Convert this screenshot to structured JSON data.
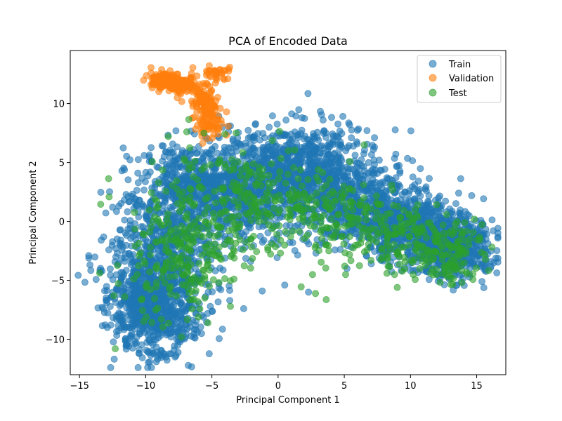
{
  "chart_data": {
    "type": "scatter",
    "title": "PCA of Encoded Data",
    "xlabel": "Principal Component 1",
    "ylabel": "Principal Component 2",
    "xlim": [
      -15.7,
      17.2
    ],
    "ylim": [
      -13.0,
      14.5
    ],
    "xticks": [
      -15,
      -10,
      -5,
      0,
      5,
      10,
      15
    ],
    "yticks": [
      -10,
      -5,
      0,
      5,
      10
    ],
    "grid": false,
    "legend_position": "top-right",
    "marker_alpha": 0.6,
    "series": [
      {
        "name": "Train",
        "color": "#1f77b4",
        "clusters": [
          {
            "cx": -9.5,
            "cy": -7.5,
            "sx": 1.6,
            "sy": 2.0,
            "n": 700
          },
          {
            "cx": -8.5,
            "cy": -2.5,
            "sx": 2.0,
            "sy": 2.6,
            "n": 500
          },
          {
            "cx": -6.0,
            "cy": 3.0,
            "sx": 2.4,
            "sy": 2.0,
            "n": 550
          },
          {
            "cx": -2.0,
            "cy": 2.5,
            "sx": 2.5,
            "sy": 2.2,
            "n": 450
          },
          {
            "cx": 1.5,
            "cy": 4.8,
            "sx": 2.5,
            "sy": 1.6,
            "n": 550
          },
          {
            "cx": 5.0,
            "cy": 2.0,
            "sx": 2.2,
            "sy": 2.0,
            "n": 450
          },
          {
            "cx": 9.0,
            "cy": 0.0,
            "sx": 2.0,
            "sy": 1.5,
            "n": 500
          },
          {
            "cx": 13.0,
            "cy": -2.0,
            "sx": 1.6,
            "sy": 1.4,
            "n": 600
          }
        ],
        "outliers": [
          {
            "x": -14.3,
            "y": -3.1
          },
          {
            "x": -13.3,
            "y": -4.2
          },
          {
            "x": -13.2,
            "y": -7.4
          },
          {
            "x": -9.7,
            "y": -11.9
          },
          {
            "x": -9.2,
            "y": -11.9
          },
          {
            "x": -10.5,
            "y": -11.2
          },
          {
            "x": -12.9,
            "y": -9.0
          },
          {
            "x": -12.5,
            "y": 1.2
          },
          {
            "x": -11.8,
            "y": 4.3
          },
          {
            "x": 1.8,
            "y": 8.8
          },
          {
            "x": 0.6,
            "y": 8.6
          },
          {
            "x": 3.4,
            "y": 8.6
          },
          {
            "x": 5.4,
            "y": 8.2
          },
          {
            "x": 7.2,
            "y": 6.1
          },
          {
            "x": 2.3,
            "y": -6.0
          },
          {
            "x": -2.6,
            "y": -7.4
          },
          {
            "x": -1.2,
            "y": -5.9
          },
          {
            "x": 0.5,
            "y": -5.4
          },
          {
            "x": 13.5,
            "y": -5.4
          },
          {
            "x": 15.4,
            "y": -5.1
          },
          {
            "x": 16.3,
            "y": -3.5
          },
          {
            "x": 16.1,
            "y": -2.5
          },
          {
            "x": 14.9,
            "y": -0.9
          },
          {
            "x": 14.3,
            "y": 0.6
          },
          {
            "x": 11.2,
            "y": 2.6
          },
          {
            "x": 12.1,
            "y": 1.6
          },
          {
            "x": -1.7,
            "y": 8.3
          },
          {
            "x": -4.2,
            "y": 8.0
          },
          {
            "x": -3.6,
            "y": 8.1
          },
          {
            "x": 9.0,
            "y": 4.7
          },
          {
            "x": 5.2,
            "y": -4.0
          },
          {
            "x": 8.4,
            "y": -3.8
          }
        ]
      },
      {
        "name": "Validation",
        "color": "#ff7f0e",
        "clusters": [
          {
            "cx": -8.7,
            "cy": 12.0,
            "sx": 0.5,
            "sy": 0.35,
            "n": 120
          },
          {
            "cx": -7.0,
            "cy": 11.6,
            "sx": 0.7,
            "sy": 0.4,
            "n": 90
          },
          {
            "cx": -5.5,
            "cy": 10.2,
            "sx": 0.5,
            "sy": 0.7,
            "n": 90
          },
          {
            "cx": -5.3,
            "cy": 8.3,
            "sx": 0.5,
            "sy": 0.55,
            "n": 60
          },
          {
            "cx": -4.6,
            "cy": 12.6,
            "sx": 0.45,
            "sy": 0.3,
            "n": 30
          }
        ],
        "outliers": [
          {
            "x": -3.8,
            "y": 12.1
          },
          {
            "x": -3.9,
            "y": 9.3
          },
          {
            "x": -9.5,
            "y": 11.7
          },
          {
            "x": -4.0,
            "y": 12.8
          },
          {
            "x": -5.2,
            "y": 13.2
          },
          {
            "x": -5.6,
            "y": 7.5
          }
        ]
      },
      {
        "name": "Test",
        "color": "#2ca02c",
        "clusters": [
          {
            "cx": -8.0,
            "cy": -4.0,
            "sx": 2.0,
            "sy": 2.5,
            "n": 160
          },
          {
            "cx": -5.0,
            "cy": 1.0,
            "sx": 2.6,
            "sy": 2.8,
            "n": 180
          },
          {
            "cx": 0.0,
            "cy": 1.5,
            "sx": 2.6,
            "sy": 2.2,
            "n": 150
          },
          {
            "cx": 5.0,
            "cy": 0.5,
            "sx": 2.4,
            "sy": 2.0,
            "n": 130
          },
          {
            "cx": 10.0,
            "cy": -1.5,
            "sx": 2.2,
            "sy": 1.5,
            "n": 140
          },
          {
            "cx": 13.0,
            "cy": -3.0,
            "sx": 1.3,
            "sy": 1.2,
            "n": 90
          }
        ],
        "outliers": [
          {
            "x": -8.3,
            "y": 7.2
          },
          {
            "x": -6.9,
            "y": 7.6
          },
          {
            "x": -7.3,
            "y": -9.8
          },
          {
            "x": -5.3,
            "y": -8.6
          },
          {
            "x": -3.6,
            "y": -7.2
          },
          {
            "x": 6.5,
            "y": 6.5
          },
          {
            "x": 10.2,
            "y": -4.5
          },
          {
            "x": -12.4,
            "y": -6.3
          },
          {
            "x": -12.3,
            "y": -10.8
          },
          {
            "x": 2.6,
            "y": -4.5
          },
          {
            "x": 5.1,
            "y": -4.5
          },
          {
            "x": -5.6,
            "y": 7.5
          }
        ]
      }
    ]
  }
}
